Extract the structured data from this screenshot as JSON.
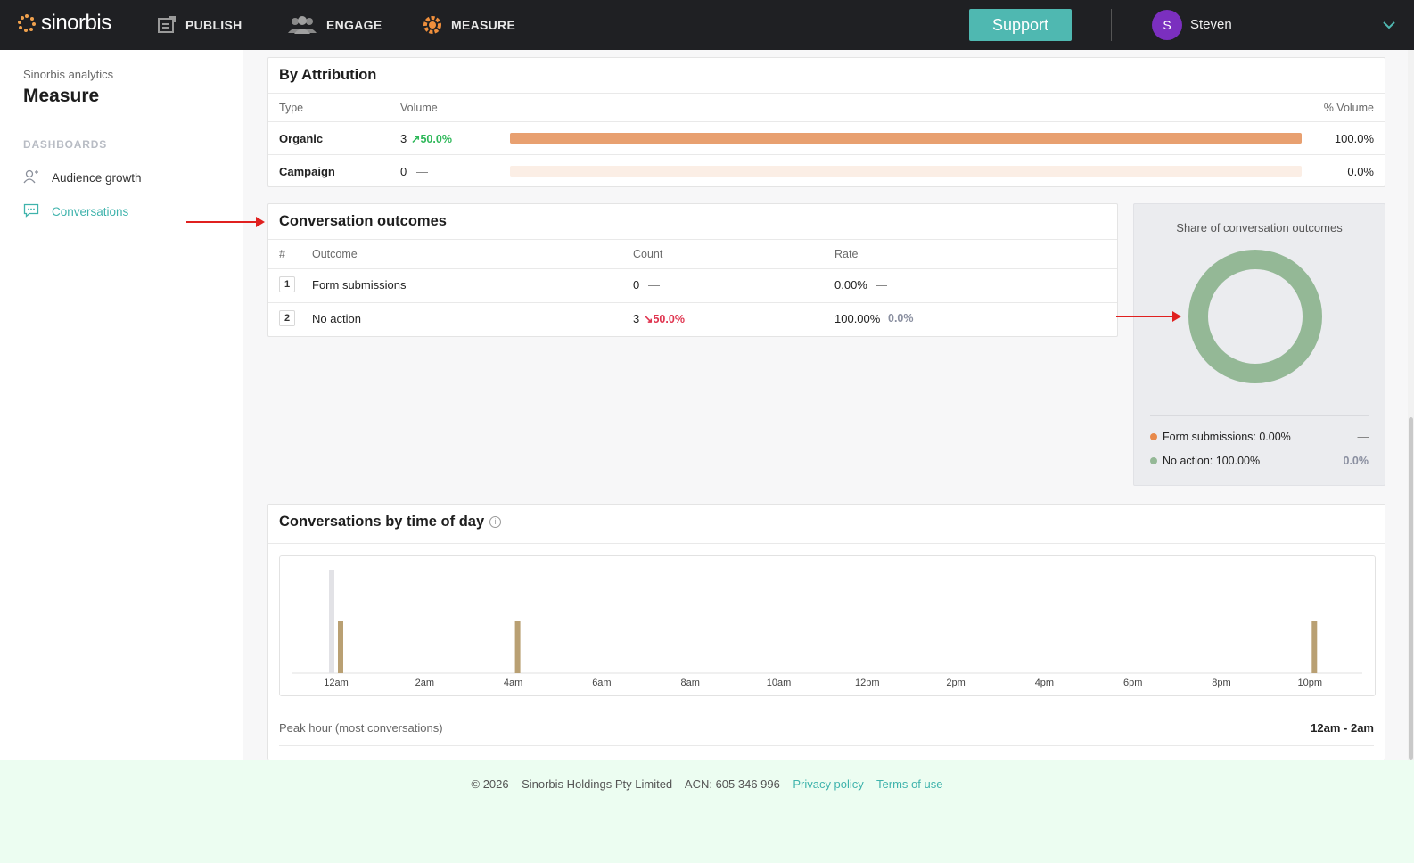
{
  "nav": {
    "logo": "sinorbis",
    "items": [
      {
        "label": "PUBLISH",
        "icon": "publish-icon"
      },
      {
        "label": "ENGAGE",
        "icon": "engage-icon"
      },
      {
        "label": "MEASURE",
        "icon": "measure-icon"
      }
    ],
    "support_label": "Support",
    "user_initial": "S",
    "user_name": "Steven",
    "accent_color": "#4fb8b1"
  },
  "sidebar": {
    "subtitle": "Sinorbis analytics",
    "title": "Measure",
    "section": "DASHBOARDS",
    "items": [
      {
        "label": "Audience growth",
        "icon": "audience-icon",
        "active": false
      },
      {
        "label": "Conversations",
        "icon": "chat-icon",
        "active": true
      }
    ]
  },
  "attribution": {
    "title": "By Attribution",
    "headers": {
      "type": "Type",
      "volume": "Volume",
      "pct": "% Volume"
    },
    "rows": [
      {
        "type": "Organic",
        "volume": "3",
        "change": "50.0%",
        "pct": "100.0%",
        "fill": 1.0
      },
      {
        "type": "Campaign",
        "volume": "0",
        "change": "—",
        "pct": "0.0%",
        "fill": 0.0
      }
    ],
    "bar_color": "#e8a070"
  },
  "outcomes": {
    "title": "Conversation outcomes",
    "headers": {
      "num": "#",
      "outcome": "Outcome",
      "count": "Count",
      "rate": "Rate"
    },
    "rows": [
      {
        "num": "1",
        "outcome": "Form submissions",
        "count": "0",
        "count_change": "—",
        "rate": "0.00%",
        "rate_change": "—"
      },
      {
        "num": "2",
        "outcome": "No action",
        "count": "3",
        "count_change": "50.0%",
        "rate": "100.00%",
        "rate_change": "0.0%"
      }
    ]
  },
  "share": {
    "title": "Share of conversation outcomes",
    "legend": [
      {
        "label": "Form submissions: 0.00%",
        "value": "—",
        "color": "#e8894a"
      },
      {
        "label": "No action: 100.00%",
        "value": "0.0%",
        "color": "#94b896"
      }
    ]
  },
  "timechart": {
    "title": "Conversations by time of day",
    "peak_label": "Peak hour (most conversations)",
    "peak_value": "12am - 2am",
    "chart_data": {
      "type": "bar",
      "categories": [
        "12am",
        "2am",
        "4am",
        "6am",
        "8am",
        "10am",
        "12pm",
        "2pm",
        "4pm",
        "6pm",
        "8pm",
        "10pm"
      ],
      "series": [
        {
          "values": [
            2,
            0,
            0,
            0,
            0,
            0,
            0,
            0,
            0,
            0,
            0,
            0
          ]
        },
        {
          "values": [
            1,
            0,
            1,
            0,
            0,
            0,
            0,
            0,
            0,
            0,
            0,
            1
          ]
        }
      ],
      "colors": [
        "#e2e2e6",
        "#b9a073"
      ]
    }
  },
  "footer": {
    "text": "© 2026 – Sinorbis Holdings Pty Limited – ACN: 605 346 996 –",
    "privacy": "Privacy policy",
    "sep": "–",
    "terms": "Terms of use"
  }
}
